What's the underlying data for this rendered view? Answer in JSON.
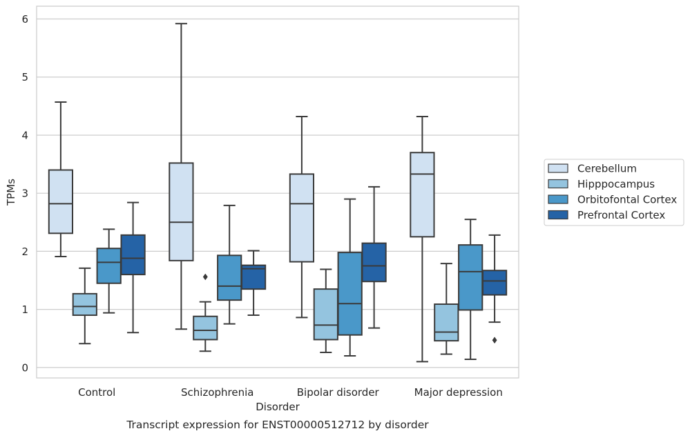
{
  "chart_data": {
    "type": "boxplot",
    "title": "Transcript expression for ENST00000512712 by disorder",
    "xlabel": "Disorder",
    "ylabel": "TPMs",
    "ylim": [
      -0.18,
      6.22
    ],
    "yticks": [
      0,
      1,
      2,
      3,
      4,
      5,
      6
    ],
    "grid": true,
    "legend_position": "right",
    "categories": [
      "Control",
      "Schizophrenia",
      "Bipolar disorder",
      "Major depression"
    ],
    "series": [
      {
        "name": "Cerebellum",
        "color": "#d0e1f2",
        "boxes": [
          {
            "whislo": 1.91,
            "q1": 2.31,
            "med": 2.82,
            "q3": 3.4,
            "whishi": 4.57,
            "fliers": []
          },
          {
            "whislo": 0.66,
            "q1": 1.84,
            "med": 2.5,
            "q3": 3.52,
            "whishi": 5.92,
            "fliers": []
          },
          {
            "whislo": 0.86,
            "q1": 1.82,
            "med": 2.82,
            "q3": 3.33,
            "whishi": 4.32,
            "fliers": []
          },
          {
            "whislo": 0.1,
            "q1": 2.25,
            "med": 3.33,
            "q3": 3.7,
            "whishi": 4.32,
            "fliers": []
          }
        ]
      },
      {
        "name": "Hipppocampus",
        "color": "#94c4df",
        "boxes": [
          {
            "whislo": 0.41,
            "q1": 0.9,
            "med": 1.05,
            "q3": 1.27,
            "whishi": 1.71,
            "fliers": []
          },
          {
            "whislo": 0.28,
            "q1": 0.48,
            "med": 0.64,
            "q3": 0.88,
            "whishi": 1.13,
            "fliers": [
              1.56
            ]
          },
          {
            "whislo": 0.26,
            "q1": 0.48,
            "med": 0.73,
            "q3": 1.35,
            "whishi": 1.69,
            "fliers": []
          },
          {
            "whislo": 0.23,
            "q1": 0.46,
            "med": 0.61,
            "q3": 1.09,
            "whishi": 1.79,
            "fliers": []
          }
        ]
      },
      {
        "name": "Orbitofontal Cortex",
        "color": "#4a98c9",
        "boxes": [
          {
            "whislo": 0.94,
            "q1": 1.45,
            "med": 1.81,
            "q3": 2.05,
            "whishi": 2.38,
            "fliers": []
          },
          {
            "whislo": 0.75,
            "q1": 1.16,
            "med": 1.4,
            "q3": 1.93,
            "whishi": 2.79,
            "fliers": []
          },
          {
            "whislo": 0.2,
            "q1": 0.56,
            "med": 1.1,
            "q3": 1.98,
            "whishi": 2.9,
            "fliers": []
          },
          {
            "whislo": 0.14,
            "q1": 0.99,
            "med": 1.65,
            "q3": 2.11,
            "whishi": 2.55,
            "fliers": []
          }
        ]
      },
      {
        "name": "Prefrontal Cortex",
        "color": "#2563a6",
        "boxes": [
          {
            "whislo": 0.6,
            "q1": 1.6,
            "med": 1.88,
            "q3": 2.28,
            "whishi": 2.84,
            "fliers": []
          },
          {
            "whislo": 0.9,
            "q1": 1.35,
            "med": 1.7,
            "q3": 1.76,
            "whishi": 2.01,
            "fliers": []
          },
          {
            "whislo": 0.68,
            "q1": 1.48,
            "med": 1.75,
            "q3": 2.14,
            "whishi": 3.11,
            "fliers": []
          },
          {
            "whislo": 0.78,
            "q1": 1.25,
            "med": 1.49,
            "q3": 1.67,
            "whishi": 2.28,
            "fliers": [
              0.47
            ]
          }
        ]
      }
    ]
  }
}
